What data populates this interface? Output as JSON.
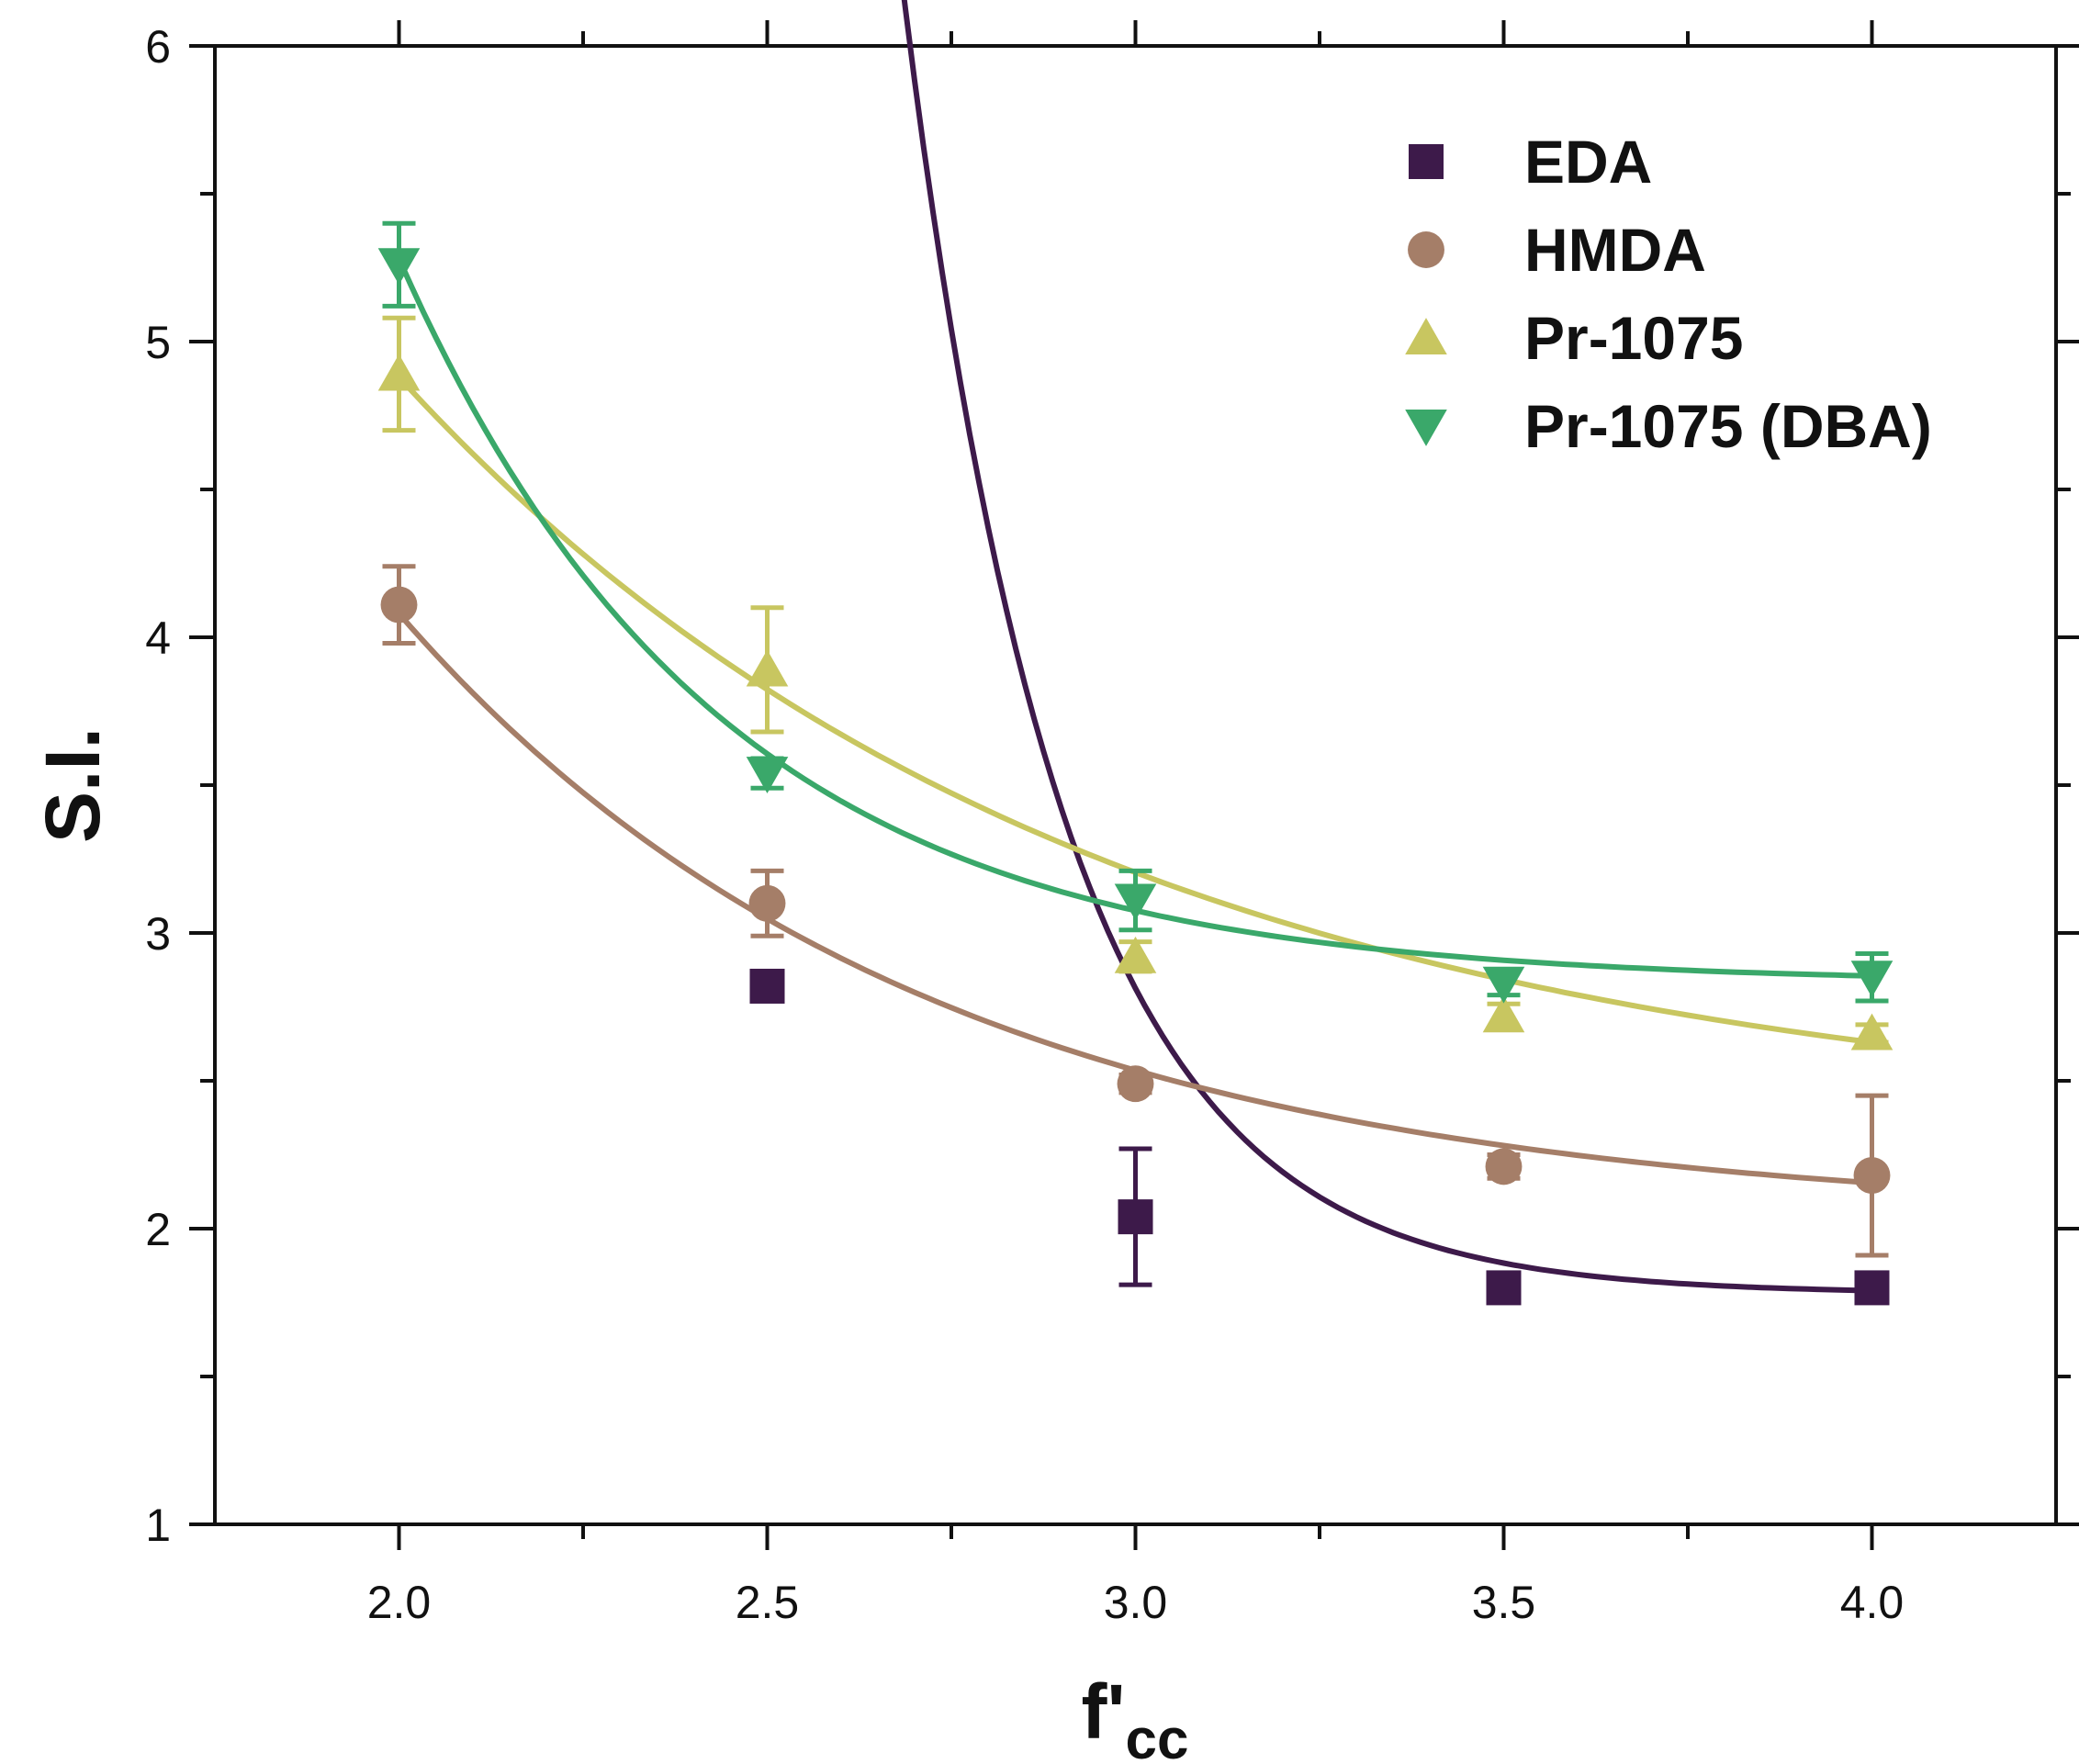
{
  "chart_data": {
    "type": "scatter",
    "title": "",
    "xlabel": "f'",
    "xlabel_sub": "cc",
    "ylabel": "S.I.",
    "xlim": [
      1.75,
      4.25
    ],
    "ylim": [
      1,
      6
    ],
    "x_ticks": [
      "2.0",
      "2.5",
      "3.0",
      "3.5",
      "4.0"
    ],
    "y_ticks": [
      "1",
      "2",
      "3",
      "4",
      "5",
      "6"
    ],
    "legend_position": "top-right",
    "series": [
      {
        "name": "EDA",
        "marker": "square",
        "color": "#3d1a4a",
        "x": [
          2.5,
          3.0,
          3.5,
          4.0
        ],
        "y": [
          2.82,
          2.04,
          1.8,
          1.8
        ],
        "err": [
          0.04,
          0.23,
          0.04,
          0.03
        ],
        "fit": {
          "a": 10.3,
          "k": 4.6,
          "c": 1.78
        }
      },
      {
        "name": "HMDA",
        "marker": "circle",
        "color": "#a57e68",
        "x": [
          2.0,
          2.5,
          3.0,
          3.5,
          4.0
        ],
        "y": [
          4.11,
          3.1,
          2.49,
          2.21,
          2.18
        ],
        "err": [
          0.13,
          0.11,
          0.03,
          0.04,
          0.27
        ],
        "fit": {
          "a": 2.05,
          "k": 1.4,
          "c": 2.03
        }
      },
      {
        "name": "Pr-1075",
        "marker": "triangle-up",
        "color": "#c8c660",
        "x": [
          2.0,
          2.5,
          3.0,
          3.5,
          4.0
        ],
        "y": [
          4.89,
          3.89,
          2.92,
          2.72,
          2.66
        ],
        "err": [
          0.19,
          0.21,
          0.05,
          0.04,
          0.03
        ],
        "fit": {
          "a": 2.55,
          "k": 1.07,
          "c": 2.33
        }
      },
      {
        "name": "Pr-1075 (DBA)",
        "marker": "triangle-down",
        "color": "#3aa86a",
        "x": [
          2.0,
          2.5,
          3.0,
          3.5,
          4.0
        ],
        "y": [
          5.26,
          3.54,
          3.11,
          2.83,
          2.85
        ],
        "err": [
          0.14,
          0.05,
          0.1,
          0.04,
          0.08
        ],
        "fit": {
          "a": 2.45,
          "k": 2.3,
          "c": 2.83
        }
      }
    ]
  }
}
